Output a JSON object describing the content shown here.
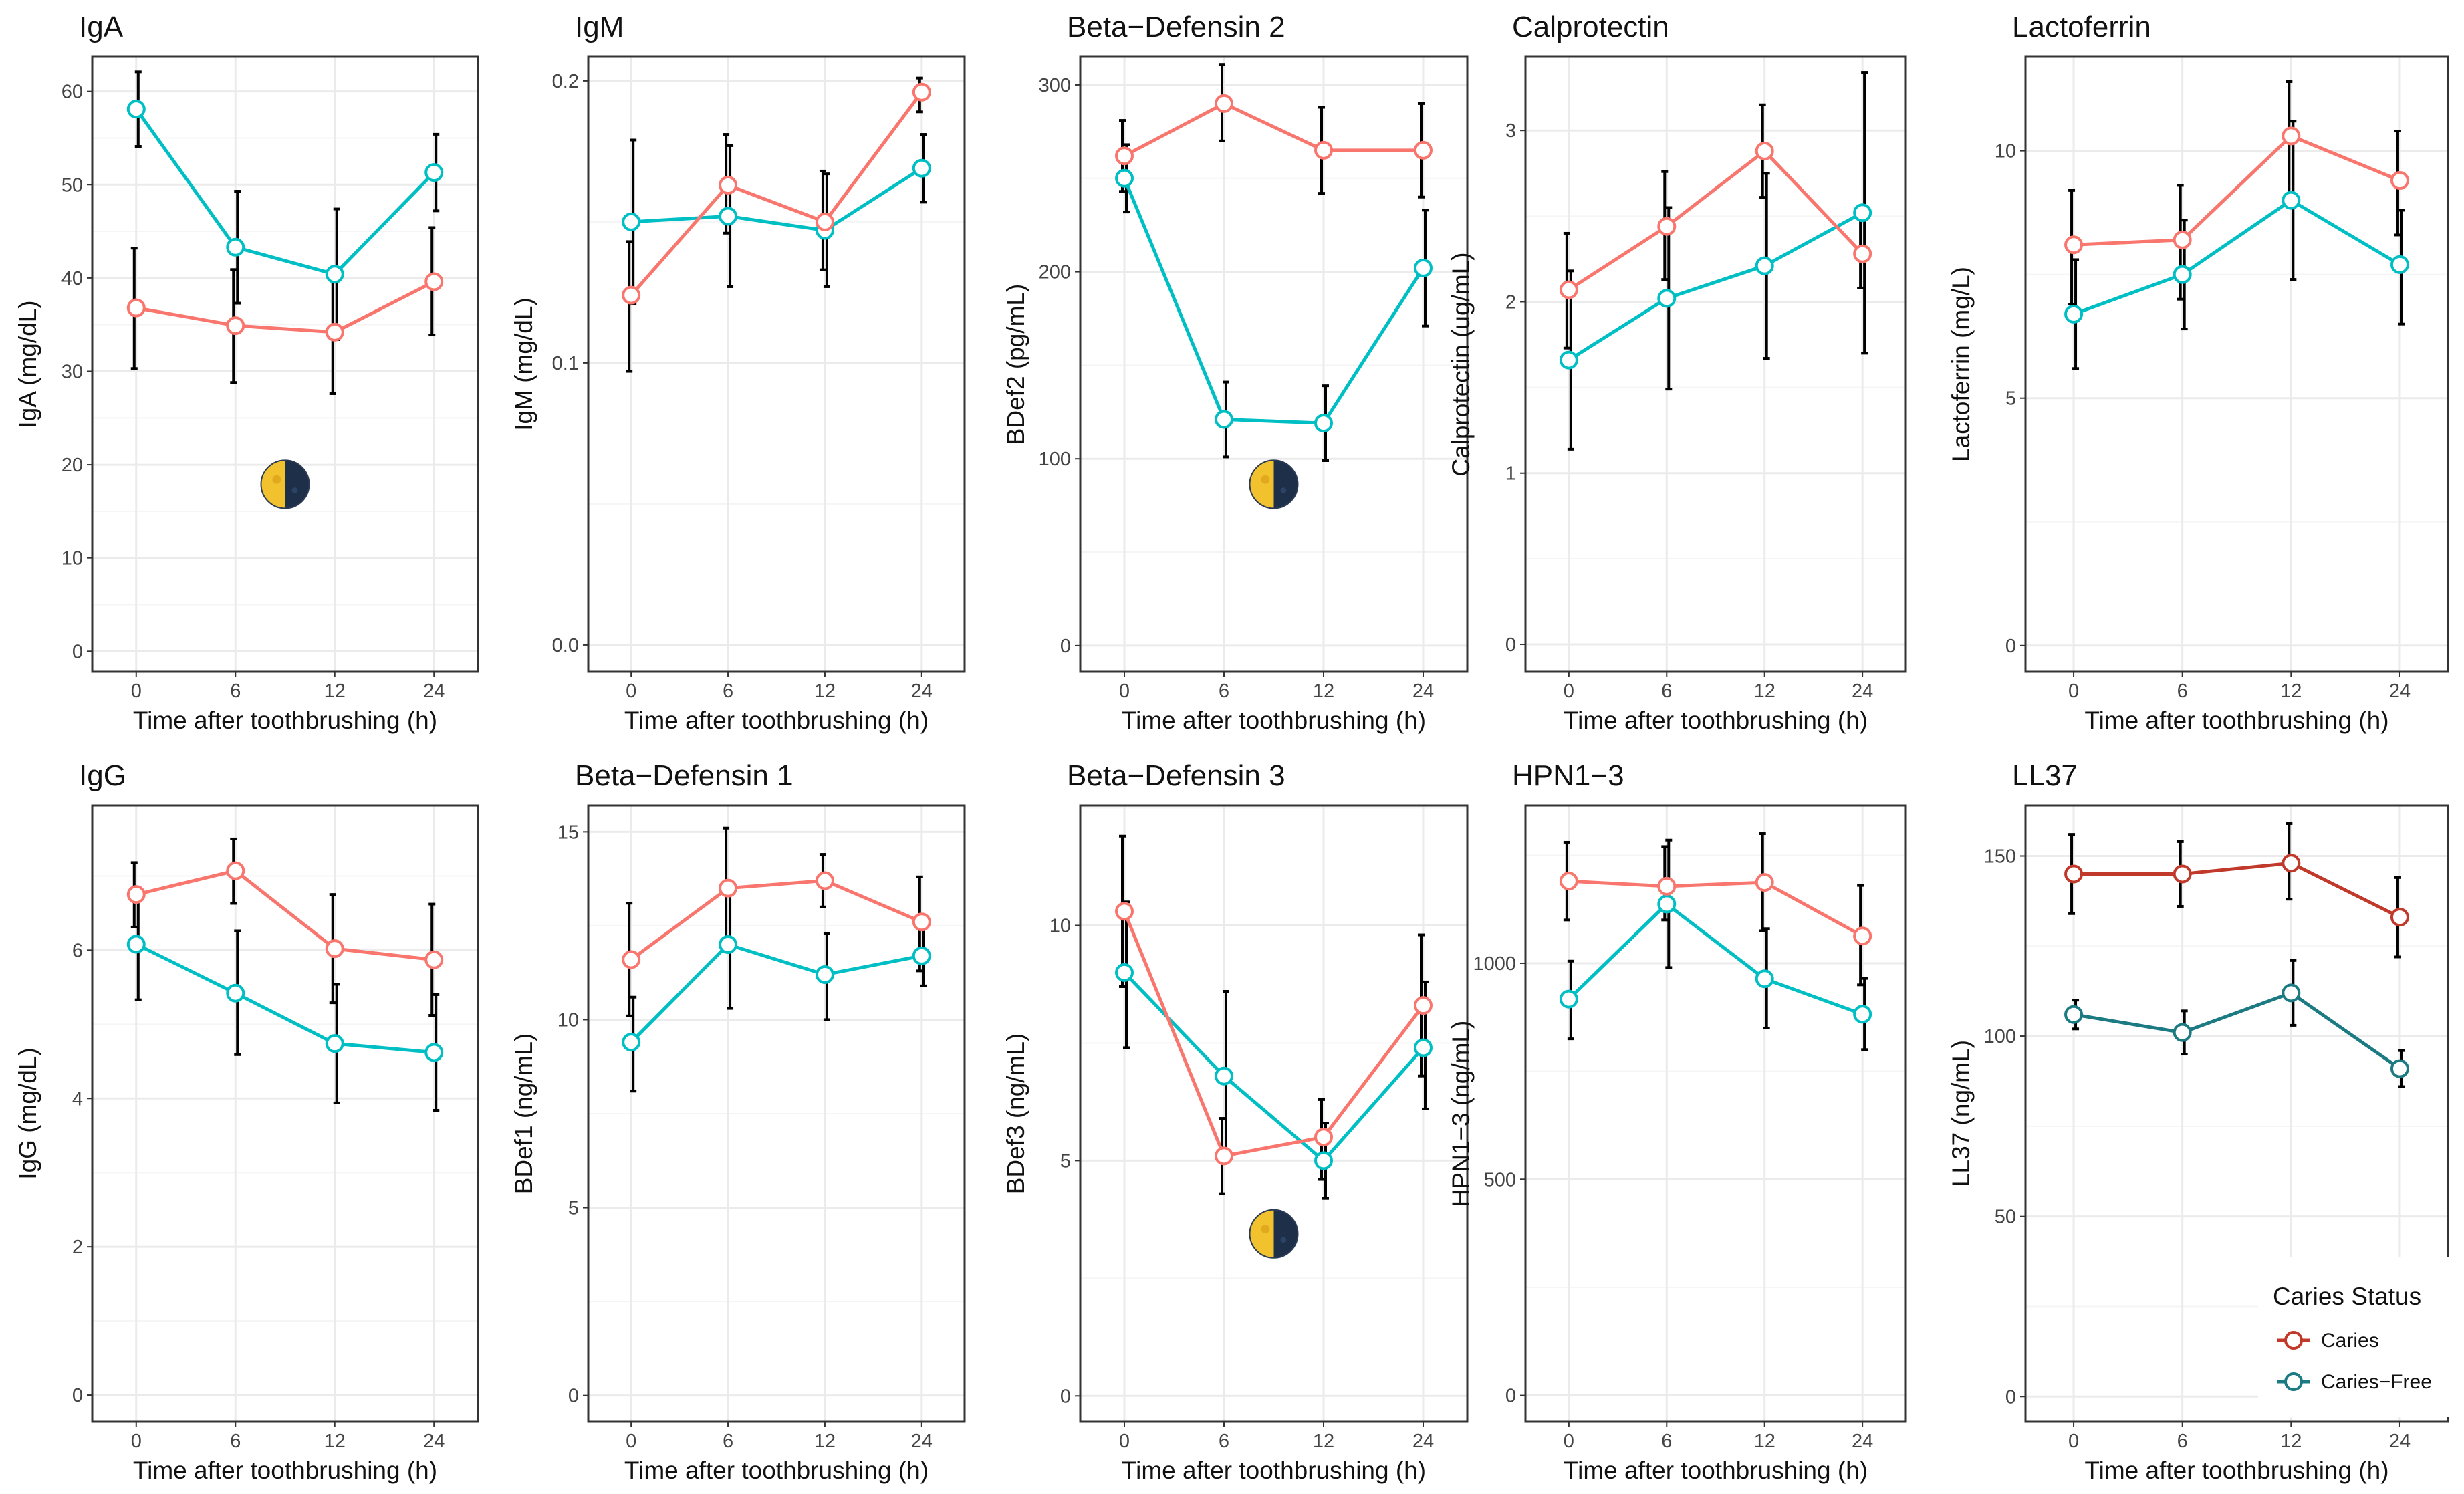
{
  "colors": {
    "caries": "#F8766D",
    "caries_free": "#00BFC4",
    "caries_dark": "#C0392B",
    "caries_free_dark": "#1B7A82",
    "errorbar": "#000000",
    "grid_major": "#EBEBEB",
    "grid_minor": "#F5F5F5",
    "panel_border": "#333333"
  },
  "legend": {
    "title": "Caries Status",
    "items": [
      {
        "label": "Caries",
        "color": "#C0392B"
      },
      {
        "label": "Caries−Free",
        "color": "#1B7A82"
      }
    ]
  },
  "chart_data": [
    {
      "type": "line",
      "title": "IgA",
      "xlabel": "Time after toothbrushing (h)",
      "ylabel": "IgA (mg/dL)",
      "categories": [
        "0",
        "6",
        "12",
        "24"
      ],
      "ylim": [
        -2.2,
        63.7
      ],
      "yticks": [
        0,
        10,
        20,
        30,
        40,
        50,
        60
      ],
      "moon": true,
      "series": [
        {
          "name": "Caries",
          "values": [
            36.8,
            34.9,
            34.2,
            39.6
          ],
          "lower": [
            30.3,
            28.8,
            27.6,
            33.9
          ],
          "upper": [
            43.2,
            40.9,
            40.8,
            45.4
          ]
        },
        {
          "name": "Caries−Free",
          "values": [
            58.1,
            43.3,
            40.4,
            51.3
          ],
          "lower": [
            54.1,
            37.3,
            33.4,
            47.2
          ],
          "upper": [
            62.1,
            49.3,
            47.4,
            55.4
          ]
        }
      ]
    },
    {
      "type": "line",
      "title": "IgM",
      "xlabel": "Time after toothbrushing (h)",
      "ylabel": "IgM (mg/dL)",
      "categories": [
        "0",
        "6",
        "12",
        "24"
      ],
      "ylim": [
        -0.0095,
        0.2085
      ],
      "yticks": [
        0.0,
        0.1,
        0.2
      ],
      "tickDecimals": 1,
      "series": [
        {
          "name": "Caries",
          "values": [
            0.124,
            0.163,
            0.15,
            0.196
          ],
          "lower": [
            0.097,
            0.146,
            0.133,
            0.189
          ],
          "upper": [
            0.143,
            0.181,
            0.168,
            0.201
          ]
        },
        {
          "name": "Caries−Free",
          "values": [
            0.15,
            0.152,
            0.147,
            0.169
          ],
          "lower": [
            0.121,
            0.127,
            0.127,
            0.157
          ],
          "upper": [
            0.179,
            0.177,
            0.167,
            0.181
          ]
        }
      ]
    },
    {
      "type": "line",
      "title": "Beta−Defensin 2",
      "xlabel": "Time after toothbrushing (h)",
      "ylabel": "BDef2 (pg/mL)",
      "categories": [
        "0",
        "6",
        "12",
        "24"
      ],
      "ylim": [
        -14,
        315
      ],
      "yticks": [
        0,
        100,
        200,
        300
      ],
      "moon": true,
      "series": [
        {
          "name": "Caries",
          "values": [
            262,
            290,
            265,
            265
          ],
          "lower": [
            243,
            270,
            242,
            240
          ],
          "upper": [
            281,
            311,
            288,
            290
          ]
        },
        {
          "name": "Caries−Free",
          "values": [
            250,
            121,
            119,
            202
          ],
          "lower": [
            232,
            101,
            99,
            171
          ],
          "upper": [
            268,
            141,
            139,
            233
          ]
        }
      ]
    },
    {
      "type": "line",
      "title": "Calprotectin",
      "xlabel": "Time after toothbrushing (h)",
      "ylabel": "Calprotectin (ug/mL)",
      "categories": [
        "0",
        "6",
        "12",
        "24"
      ],
      "ylim": [
        -0.16,
        3.43
      ],
      "yticks": [
        0,
        1,
        2,
        3
      ],
      "series": [
        {
          "name": "Caries",
          "values": [
            2.07,
            2.44,
            2.88,
            2.28
          ],
          "lower": [
            1.73,
            2.13,
            2.61,
            2.08
          ],
          "upper": [
            2.4,
            2.76,
            3.15,
            2.49
          ]
        },
        {
          "name": "Caries−Free",
          "values": [
            1.66,
            2.02,
            2.21,
            2.52
          ],
          "lower": [
            1.14,
            1.49,
            1.67,
            1.7
          ],
          "upper": [
            2.18,
            2.55,
            2.75,
            3.34
          ]
        }
      ]
    },
    {
      "type": "line",
      "title": "Lactoferrin",
      "xlabel": "Time after toothbrushing (h)",
      "ylabel": "Lactoferrin (mg/L)",
      "categories": [
        "0",
        "6",
        "12",
        "24"
      ],
      "ylim": [
        -0.53,
        11.9
      ],
      "yticks": [
        0,
        5,
        10
      ],
      "series": [
        {
          "name": "Caries",
          "values": [
            8.1,
            8.2,
            10.3,
            9.4
          ],
          "lower": [
            6.9,
            7.0,
            8.9,
            8.3
          ],
          "upper": [
            9.2,
            9.3,
            11.4,
            10.4
          ]
        },
        {
          "name": "Caries−Free",
          "values": [
            6.7,
            7.5,
            9.0,
            7.7
          ],
          "lower": [
            5.6,
            6.4,
            7.4,
            6.5
          ],
          "upper": [
            7.8,
            8.6,
            10.6,
            8.8
          ]
        }
      ]
    },
    {
      "type": "line",
      "title": "IgG",
      "xlabel": "Time after toothbrushing (h)",
      "ylabel": "IgG (mg/dL)",
      "categories": [
        "0",
        "6",
        "12",
        "24"
      ],
      "ylim": [
        -0.36,
        7.95
      ],
      "yticks": [
        0,
        2,
        4,
        6
      ],
      "series": [
        {
          "name": "Caries",
          "values": [
            6.75,
            7.07,
            6.02,
            5.87
          ],
          "lower": [
            6.31,
            6.63,
            5.29,
            5.12
          ],
          "upper": [
            7.18,
            7.5,
            6.75,
            6.62
          ]
        },
        {
          "name": "Caries−Free",
          "values": [
            6.08,
            5.42,
            4.74,
            4.62
          ],
          "lower": [
            5.33,
            4.59,
            3.94,
            3.84
          ],
          "upper": [
            6.83,
            6.26,
            5.54,
            5.4
          ]
        }
      ]
    },
    {
      "type": "line",
      "title": "Beta−Defensin 1",
      "xlabel": "Time after toothbrushing (h)",
      "ylabel": "BDef1 (ng/mL)",
      "categories": [
        "0",
        "6",
        "12",
        "24"
      ],
      "ylim": [
        -0.7,
        15.7
      ],
      "yticks": [
        0,
        5,
        10,
        15
      ],
      "series": [
        {
          "name": "Caries",
          "values": [
            11.6,
            13.5,
            13.7,
            12.6
          ],
          "lower": [
            10.1,
            12.0,
            13.0,
            11.3
          ],
          "upper": [
            13.1,
            15.1,
            14.4,
            13.8
          ]
        },
        {
          "name": "Caries−Free",
          "values": [
            9.4,
            12.0,
            11.2,
            11.7
          ],
          "lower": [
            8.1,
            10.3,
            10.0,
            10.9
          ],
          "upper": [
            10.6,
            13.6,
            12.3,
            12.5
          ]
        }
      ]
    },
    {
      "type": "line",
      "title": "Beta−Defensin 3",
      "xlabel": "Time after toothbrushing (h)",
      "ylabel": "BDef3 (ng/mL)",
      "categories": [
        "0",
        "6",
        "12",
        "24"
      ],
      "ylim": [
        -0.55,
        12.55
      ],
      "yticks": [
        0,
        5,
        10
      ],
      "moon": true,
      "series": [
        {
          "name": "Caries",
          "values": [
            10.3,
            5.1,
            5.5,
            8.3
          ],
          "lower": [
            8.7,
            4.3,
            4.6,
            6.8
          ],
          "upper": [
            11.9,
            5.9,
            6.3,
            9.8
          ]
        },
        {
          "name": "Caries−Free",
          "values": [
            9.0,
            6.8,
            5.0,
            7.4
          ],
          "lower": [
            7.4,
            5.0,
            4.2,
            6.1
          ],
          "upper": [
            10.5,
            8.6,
            5.8,
            8.8
          ]
        }
      ]
    },
    {
      "type": "line",
      "title": "HPN1−3",
      "xlabel": "Time after toothbrushing (h)",
      "ylabel": "HPN1−3 (ng/mL)",
      "categories": [
        "0",
        "6",
        "12",
        "24"
      ],
      "ylim": [
        -61,
        1365
      ],
      "yticks": [
        0,
        500,
        1000
      ],
      "series": [
        {
          "name": "Caries",
          "values": [
            1190,
            1178,
            1187,
            1063
          ],
          "lower": [
            1100,
            1100,
            1075,
            950
          ],
          "upper": [
            1280,
            1270,
            1300,
            1180
          ]
        },
        {
          "name": "Caries−Free",
          "values": [
            917,
            1137,
            964,
            882
          ],
          "lower": [
            825,
            990,
            850,
            800
          ],
          "upper": [
            1005,
            1285,
            1080,
            965
          ]
        }
      ]
    },
    {
      "type": "line",
      "title": "LL37",
      "xlabel": "Time after toothbrushing (h)",
      "ylabel": "LL37 (ng/mL)",
      "categories": [
        "0",
        "6",
        "12",
        "24"
      ],
      "ylim": [
        -7,
        164
      ],
      "yticks": [
        0,
        50,
        100,
        150
      ],
      "dark": true,
      "hasLegend": true,
      "series": [
        {
          "name": "Caries",
          "values": [
            145,
            145,
            148,
            133
          ],
          "lower": [
            134,
            136,
            138,
            122
          ],
          "upper": [
            156,
            154,
            159,
            144
          ]
        },
        {
          "name": "Caries−Free",
          "values": [
            106,
            101,
            112,
            91
          ],
          "lower": [
            102,
            95,
            103,
            86
          ],
          "upper": [
            110,
            107,
            121,
            96
          ]
        }
      ]
    }
  ]
}
